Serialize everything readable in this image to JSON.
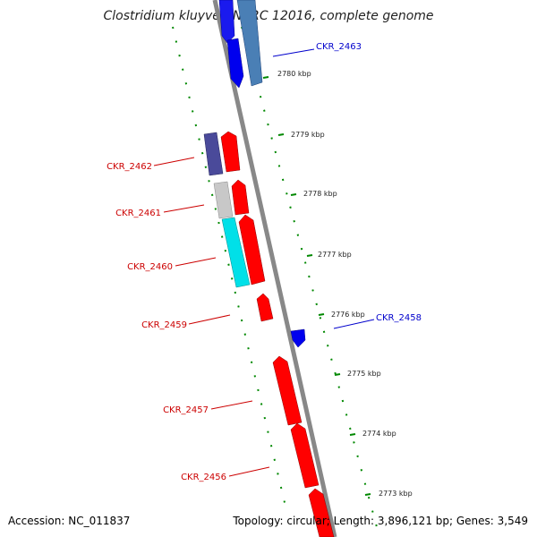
{
  "title": "Clostridium kluyveri NBRC 12016, complete genome",
  "footer": {
    "accession": "Accession: NC_011837",
    "summary": "Topology: circular; Length: 3,896,121 bp; Genes: 3,549"
  },
  "colors": {
    "forward_gene": "#ff0000",
    "reverse_gene": "#0000ff",
    "forward_label": "#cc0000",
    "reverse_label": "#0000cc",
    "backbone": "#888888",
    "ticks": "#008800"
  },
  "ticks": [
    {
      "label": "2780 kbp"
    },
    {
      "label": "2779 kbp"
    },
    {
      "label": "2778 kbp"
    },
    {
      "label": "2777 kbp"
    },
    {
      "label": "2776 kbp"
    },
    {
      "label": "2775 kbp"
    },
    {
      "label": "2774 kbp"
    },
    {
      "label": "2773 kbp"
    }
  ],
  "gene_labels": [
    {
      "name": "CKR_2463",
      "strand": "reverse"
    },
    {
      "name": "CKR_2462",
      "strand": "forward"
    },
    {
      "name": "CKR_2461",
      "strand": "forward"
    },
    {
      "name": "CKR_2460",
      "strand": "forward"
    },
    {
      "name": "CKR_2459",
      "strand": "forward"
    },
    {
      "name": "CKR_2458",
      "strand": "reverse"
    },
    {
      "name": "CKR_2457",
      "strand": "forward"
    },
    {
      "name": "CKR_2456",
      "strand": "forward"
    }
  ]
}
